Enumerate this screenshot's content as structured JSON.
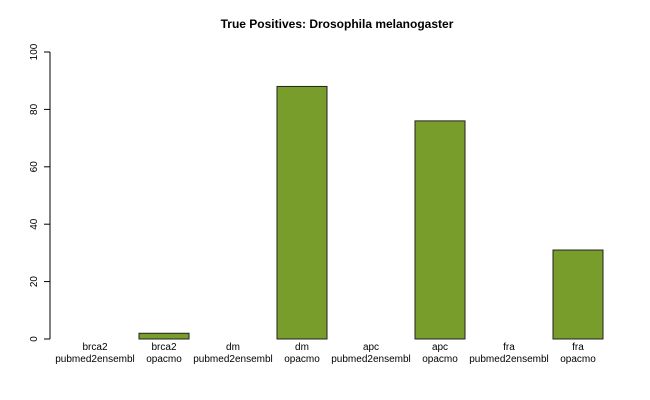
{
  "chart_data": {
    "type": "bar",
    "title": "True Positives: Drosophila melanogaster",
    "xlabel": "",
    "ylabel": "",
    "ylim": [
      0,
      100
    ],
    "yticks": [
      0,
      20,
      40,
      60,
      80,
      100
    ],
    "bar_color": "#789D2B",
    "categories": [
      [
        "brca2",
        "pubmed2ensembl"
      ],
      [
        "brca2",
        "opacmo"
      ],
      [
        "dm",
        "pubmed2ensembl"
      ],
      [
        "dm",
        "opacmo"
      ],
      [
        "apc",
        "pubmed2ensembl"
      ],
      [
        "apc",
        "opacmo"
      ],
      [
        "fra",
        "pubmed2ensembl"
      ],
      [
        "fra",
        "opacmo"
      ]
    ],
    "values": [
      0,
      2,
      0,
      88,
      0,
      76,
      0,
      31
    ],
    "grid": false,
    "legend": "none"
  }
}
